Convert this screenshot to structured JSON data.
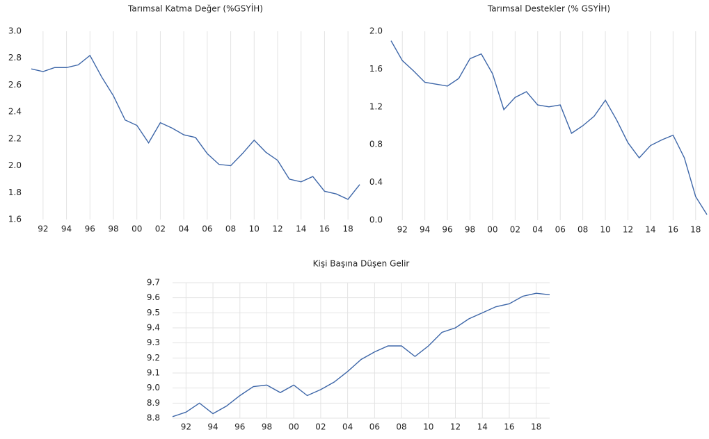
{
  "chart_data": [
    {
      "type": "line",
      "title": "Tarımsal Katma Değer (%GSYİH)",
      "color": "#3d66a8",
      "grid": "x",
      "x": [
        1991,
        1992,
        1993,
        1994,
        1995,
        1996,
        1997,
        1998,
        1999,
        2000,
        2001,
        2002,
        2003,
        2004,
        2005,
        2006,
        2007,
        2008,
        2009,
        2010,
        2011,
        2012,
        2013,
        2014,
        2015,
        2016,
        2017,
        2018,
        2019
      ],
      "values": [
        2.72,
        2.7,
        2.73,
        2.73,
        2.75,
        2.82,
        2.66,
        2.52,
        2.34,
        2.3,
        2.17,
        2.32,
        2.28,
        2.23,
        2.21,
        2.09,
        2.01,
        2.0,
        2.09,
        2.19,
        2.1,
        2.04,
        1.9,
        1.88,
        1.92,
        1.81,
        1.79,
        1.75,
        1.86
      ],
      "xlim": [
        1991,
        2019
      ],
      "xticks": [
        {
          "value": 1992,
          "label": "92"
        },
        {
          "value": 1994,
          "label": "94"
        },
        {
          "value": 1996,
          "label": "96"
        },
        {
          "value": 1998,
          "label": "98"
        },
        {
          "value": 2000,
          "label": "00"
        },
        {
          "value": 2002,
          "label": "02"
        },
        {
          "value": 2004,
          "label": "04"
        },
        {
          "value": 2006,
          "label": "06"
        },
        {
          "value": 2008,
          "label": "08"
        },
        {
          "value": 2010,
          "label": "10"
        },
        {
          "value": 2012,
          "label": "12"
        },
        {
          "value": 2014,
          "label": "14"
        },
        {
          "value": 2016,
          "label": "16"
        },
        {
          "value": 2018,
          "label": "18"
        }
      ],
      "ylim": [
        1.6,
        3.0
      ],
      "yticks": [
        {
          "value": 3,
          "label": "3.0"
        },
        2.8,
        2.6,
        2.4,
        2.2,
        {
          "value": 2,
          "label": "2.0"
        },
        1.8,
        1.6
      ]
    },
    {
      "type": "line",
      "title": "Tarımsal Destekler (% GSYİH)",
      "color": "#3d66a8",
      "grid": "x",
      "x": [
        1991,
        1992,
        1993,
        1994,
        1995,
        1996,
        1997,
        1998,
        1999,
        2000,
        2001,
        2002,
        2003,
        2004,
        2005,
        2006,
        2007,
        2008,
        2009,
        2010,
        2011,
        2012,
        2013,
        2014,
        2015,
        2016,
        2017,
        2018,
        2019
      ],
      "values": [
        1.9,
        1.69,
        1.58,
        1.46,
        1.44,
        1.42,
        1.5,
        1.71,
        1.76,
        1.55,
        1.17,
        1.3,
        1.36,
        1.22,
        1.2,
        1.22,
        0.92,
        1.0,
        1.1,
        1.27,
        1.06,
        0.82,
        0.66,
        0.79,
        0.85,
        0.9,
        0.66,
        0.25,
        0.06
      ],
      "xlim": [
        1991,
        2019
      ],
      "xticks": [
        {
          "value": 1992,
          "label": "92"
        },
        {
          "value": 1994,
          "label": "94"
        },
        {
          "value": 1996,
          "label": "96"
        },
        {
          "value": 1998,
          "label": "98"
        },
        {
          "value": 2000,
          "label": "00"
        },
        {
          "value": 2002,
          "label": "02"
        },
        {
          "value": 2004,
          "label": "04"
        },
        {
          "value": 2006,
          "label": "06"
        },
        {
          "value": 2008,
          "label": "08"
        },
        {
          "value": 2010,
          "label": "10"
        },
        {
          "value": 2012,
          "label": "12"
        },
        {
          "value": 2014,
          "label": "14"
        },
        {
          "value": 2016,
          "label": "16"
        },
        {
          "value": 2018,
          "label": "18"
        }
      ],
      "ylim": [
        0,
        2.0
      ],
      "yticks": [
        {
          "value": 2,
          "label": "2.0"
        },
        1.6,
        1.2,
        0.8,
        0.4,
        {
          "value": 0,
          "label": "0.0"
        }
      ]
    },
    {
      "type": "line",
      "title": "Kişi  Başına Düşen Gelir",
      "color": "#3d66a8",
      "grid": "both",
      "x": [
        1991,
        1992,
        1993,
        1994,
        1995,
        1996,
        1997,
        1998,
        1999,
        2000,
        2001,
        2002,
        2003,
        2004,
        2005,
        2006,
        2007,
        2008,
        2009,
        2010,
        2011,
        2012,
        2013,
        2014,
        2015,
        2016,
        2017,
        2018,
        2019
      ],
      "values": [
        8.81,
        8.84,
        8.9,
        8.83,
        8.88,
        8.95,
        9.01,
        9.02,
        8.97,
        9.02,
        8.95,
        8.99,
        9.04,
        9.11,
        9.19,
        9.24,
        9.28,
        9.28,
        9.21,
        9.28,
        9.37,
        9.4,
        9.46,
        9.5,
        9.54,
        9.56,
        9.61,
        9.63,
        9.62
      ],
      "xlim": [
        1991,
        2019
      ],
      "xticks": [
        {
          "value": 1992,
          "label": "92"
        },
        {
          "value": 1994,
          "label": "94"
        },
        {
          "value": 1996,
          "label": "96"
        },
        {
          "value": 1998,
          "label": "98"
        },
        {
          "value": 2000,
          "label": "00"
        },
        {
          "value": 2002,
          "label": "02"
        },
        {
          "value": 2004,
          "label": "04"
        },
        {
          "value": 2006,
          "label": "06"
        },
        {
          "value": 2008,
          "label": "08"
        },
        {
          "value": 2010,
          "label": "10"
        },
        {
          "value": 2012,
          "label": "12"
        },
        {
          "value": 2014,
          "label": "14"
        },
        {
          "value": 2016,
          "label": "16"
        },
        {
          "value": 2018,
          "label": "18"
        }
      ],
      "ylim": [
        8.8,
        9.7
      ],
      "yticks": [
        9.7,
        9.6,
        9.5,
        9.4,
        9.3,
        9.2,
        9.1,
        {
          "value": 9,
          "label": "9.0"
        },
        8.9,
        8.8
      ]
    }
  ]
}
